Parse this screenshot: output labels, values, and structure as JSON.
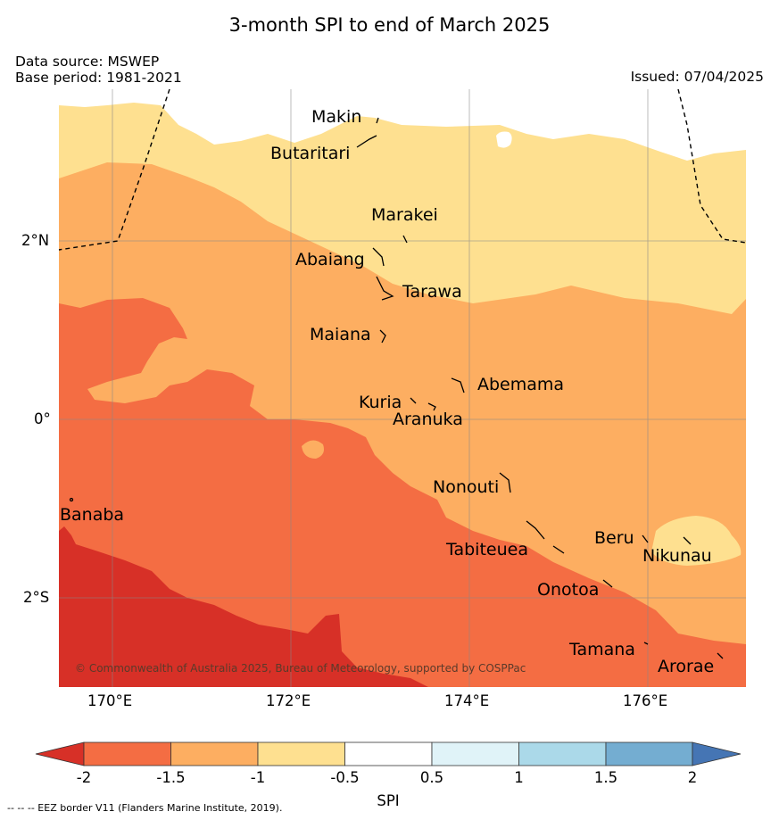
{
  "title": "3-month SPI to end of March 2025",
  "data_source": "Data source: MSWEP",
  "base_period": "Base period: 1981-2021",
  "issued": "Issued: 07/04/2025",
  "copyright": "© Commonwealth of Australia 2025, Bureau of Meteorology, supported by COSPPac",
  "eez_note": "--  --  -- EEZ border V11 (Flanders Marine Institute, 2019).",
  "lat_labels": [
    "2°N",
    "0°",
    "2°S"
  ],
  "lon_labels": [
    "170°E",
    "172°E",
    "174°E",
    "176°E"
  ],
  "places": [
    "Makin",
    "Butaritari",
    "Marakei",
    "Abaiang",
    "Tarawa",
    "Maiana",
    "Abemama",
    "Kuria",
    "Aranuka",
    "Nonouti",
    "Banaba",
    "Beru",
    "Nikunau",
    "Tabiteuea",
    "Onotoa",
    "Tamana",
    "Arorae"
  ],
  "colorbar": {
    "label": "SPI",
    "ticks": [
      "-2",
      "-1.5",
      "-1",
      "-0.5",
      "0.5",
      "1",
      "1.5",
      "2"
    ],
    "colors": {
      "below_-2": "#d73027",
      "-2_-1.5": "#f46d43",
      "-1.5_-1": "#fdae61",
      "-1_-0.5": "#fee090",
      "-0.5_0.5": "#ffffff",
      "0.5_1": "#e0f3f8",
      "1_1.5": "#abd9e9",
      "1.5_2": "#74add1",
      "above_2": "#4575b4"
    }
  }
}
